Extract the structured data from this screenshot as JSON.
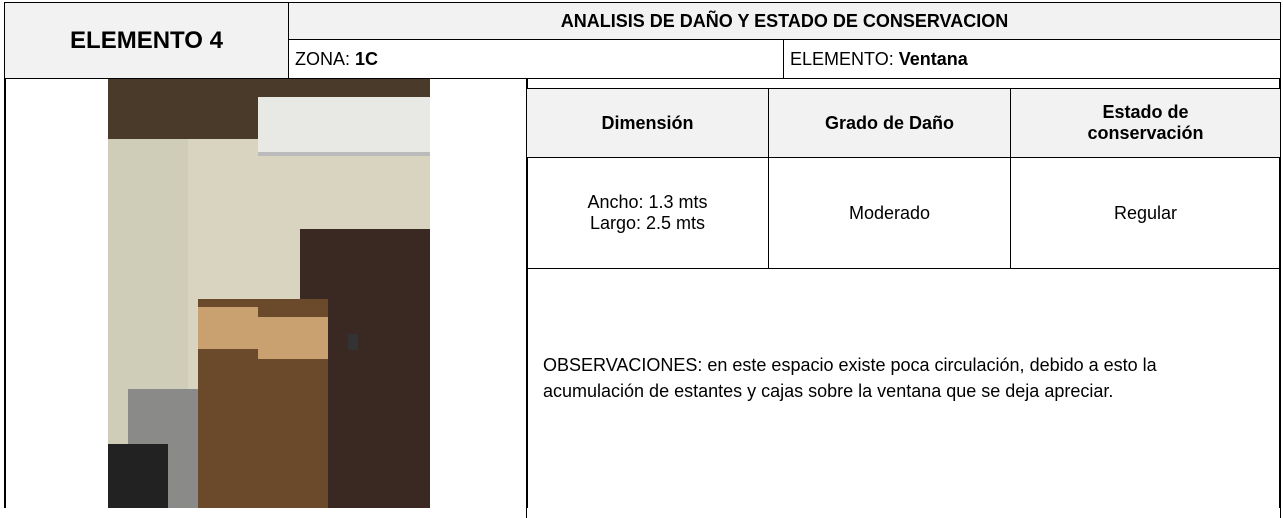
{
  "header": {
    "element": "ELEMENTO 4",
    "title": "ANALISIS DE DAÑO Y ESTADO DE CONSERVACION"
  },
  "zone": {
    "label": "ZONA:",
    "value": "1C"
  },
  "element": {
    "label": "ELEMENTO:",
    "value": "Ventana"
  },
  "table": {
    "headers": [
      "Dimensión",
      "Grado de Daño",
      "Estado de conservación"
    ],
    "rows": [
      [
        [
          "Ancho: 1.3 mts",
          "Largo: 2.5 mts"
        ],
        "Moderado",
        "Regular"
      ]
    ]
  },
  "observations": "OBSERVACIONES: en este espacio existe poca circulación, debido a esto la acumulación de estantes y cajas sobre la ventana que se deja apreciar."
}
